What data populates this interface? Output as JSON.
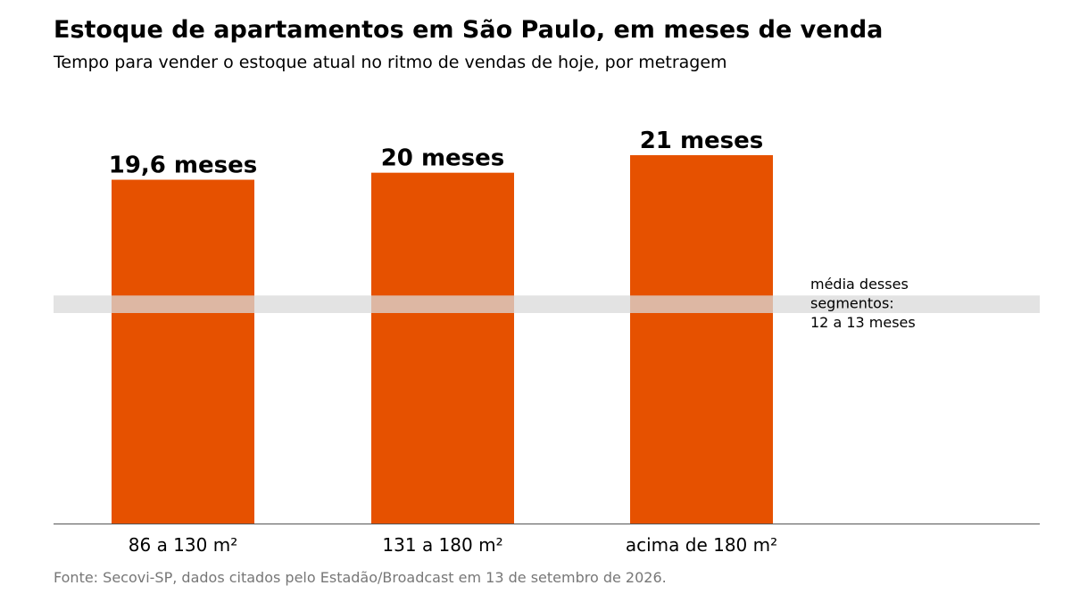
{
  "title": "Estoque de apartamentos em São Paulo, em meses de venda",
  "subtitle": "Tempo para vender o estoque atual no ritmo de vendas de hoje, por metragem",
  "source": "Fonte: Secovi-SP, dados citados pelo Estadão/Broadcast em 13 de setembro de 2026.",
  "colors": {
    "bar": "#e65100",
    "band": "#d9d9d9",
    "axis": "#555555"
  },
  "chart_data": {
    "type": "bar",
    "categories": [
      "86 a 130 m²",
      "131 a 180 m²",
      "acima de 180 m²"
    ],
    "values": [
      19.6,
      20,
      21
    ],
    "value_labels": [
      "19,6 meses",
      "20 meses",
      "21 meses"
    ],
    "ylim": [
      0,
      21
    ],
    "grid": false,
    "reference_band": {
      "range": [
        12,
        13
      ],
      "label_lines": [
        "média desses",
        "segmentos:",
        "12 a 13 meses"
      ]
    }
  }
}
